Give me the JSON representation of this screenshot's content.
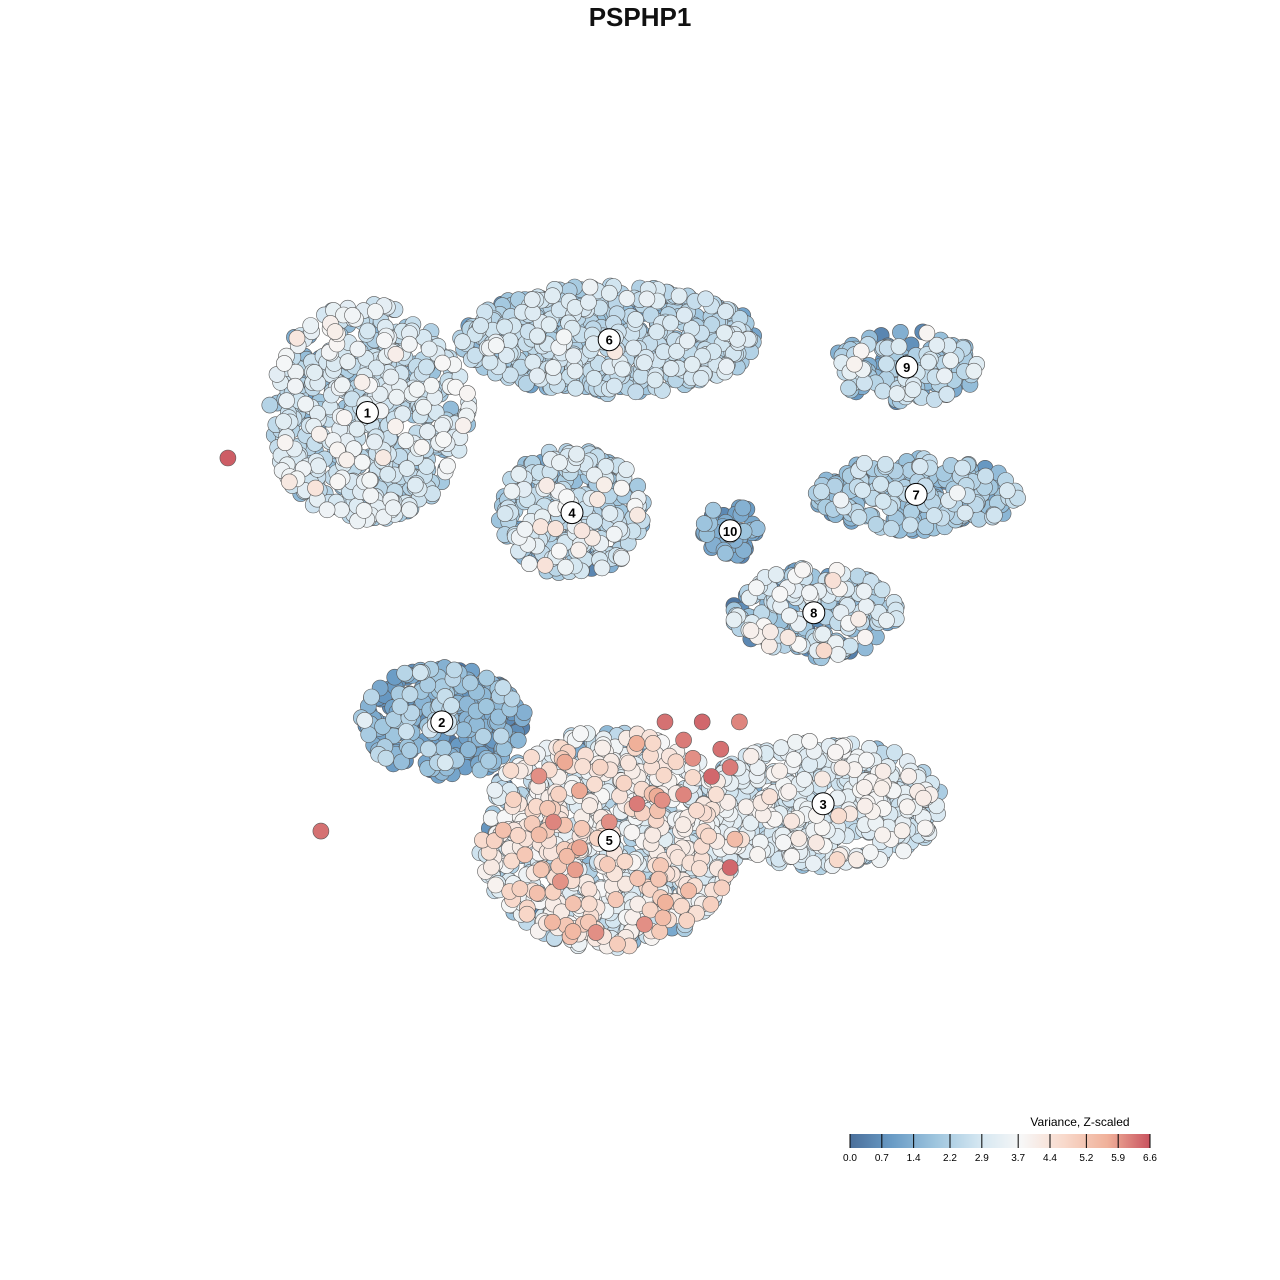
{
  "chart_data": {
    "type": "scatter",
    "title": "PSPHP1",
    "xlabel": "",
    "ylabel": "",
    "xlim": [
      0,
      100
    ],
    "ylim": [
      0,
      100
    ],
    "grid": false,
    "colorbar": {
      "title": "Variance, Z-scaled",
      "range": [
        0,
        6.6
      ],
      "ticks": [
        "0.0",
        "0.7",
        "1.4",
        "2.2",
        "2.9",
        "3.7",
        "4.4",
        "5.2",
        "5.9",
        "6.6"
      ],
      "tick_values": [
        0.0,
        0.7,
        1.4,
        2.2,
        2.9,
        3.7,
        4.4,
        5.2,
        5.9,
        6.6
      ],
      "colors": [
        "#4a6f9b",
        "#6a9cc6",
        "#9ec5de",
        "#d3e6f1",
        "#f7f7f7",
        "#f8d9cb",
        "#f0b19a",
        "#c9535f"
      ],
      "placement": "bottom-right"
    },
    "clusters": [
      {
        "label": "1",
        "x": 18,
        "y": 25,
        "rx": 11,
        "ry": 12,
        "count": 600,
        "mean": 2.6,
        "sd": 0.7
      },
      {
        "label": "6",
        "x": 44,
        "y": 17,
        "rx": 16,
        "ry": 6,
        "count": 650,
        "mean": 2.2,
        "sd": 0.6
      },
      {
        "label": "4",
        "x": 40,
        "y": 36,
        "rx": 8,
        "ry": 7,
        "count": 320,
        "mean": 2.3,
        "sd": 0.8
      },
      {
        "label": "10",
        "x": 57,
        "y": 38,
        "rx": 3,
        "ry": 3,
        "count": 60,
        "mean": 1.1,
        "sd": 0.5
      },
      {
        "label": "9",
        "x": 76,
        "y": 20,
        "rx": 8,
        "ry": 4,
        "count": 140,
        "mean": 2.2,
        "sd": 0.7
      },
      {
        "label": "7",
        "x": 77,
        "y": 34,
        "rx": 11,
        "ry": 4,
        "count": 260,
        "mean": 1.9,
        "sd": 0.6
      },
      {
        "label": "8",
        "x": 66,
        "y": 47,
        "rx": 9,
        "ry": 5,
        "count": 220,
        "mean": 2.3,
        "sd": 1.0
      },
      {
        "label": "2",
        "x": 26,
        "y": 59,
        "rx": 9,
        "ry": 6,
        "count": 280,
        "mean": 1.3,
        "sd": 0.7
      },
      {
        "label": "3",
        "x": 67,
        "y": 68,
        "rx": 13,
        "ry": 7,
        "count": 500,
        "mean": 2.9,
        "sd": 0.6
      },
      {
        "label": "5",
        "x": 44,
        "y": 72,
        "rx": 14,
        "ry": 12,
        "count": 900,
        "mean": 3.3,
        "sd": 1.0
      }
    ],
    "highlights": [
      {
        "x": 50,
        "y": 59,
        "value": 6.3
      },
      {
        "x": 52,
        "y": 61,
        "value": 6.2
      },
      {
        "x": 54,
        "y": 59,
        "value": 6.4
      },
      {
        "x": 56,
        "y": 62,
        "value": 6.3
      },
      {
        "x": 57,
        "y": 64,
        "value": 6.2
      },
      {
        "x": 55,
        "y": 65,
        "value": 6.4
      },
      {
        "x": 52,
        "y": 67,
        "value": 6.1
      },
      {
        "x": 47,
        "y": 68,
        "value": 6.2
      },
      {
        "x": 44,
        "y": 70,
        "value": 6.0
      },
      {
        "x": 38,
        "y": 70,
        "value": 6.1
      },
      {
        "x": 57,
        "y": 75,
        "value": 6.4
      },
      {
        "x": 13,
        "y": 71,
        "value": 6.3
      },
      {
        "x": 3,
        "y": 30,
        "value": 6.5
      },
      {
        "x": 58,
        "y": 59,
        "value": 6.1
      },
      {
        "x": 53,
        "y": 63,
        "value": 6.0
      }
    ]
  }
}
